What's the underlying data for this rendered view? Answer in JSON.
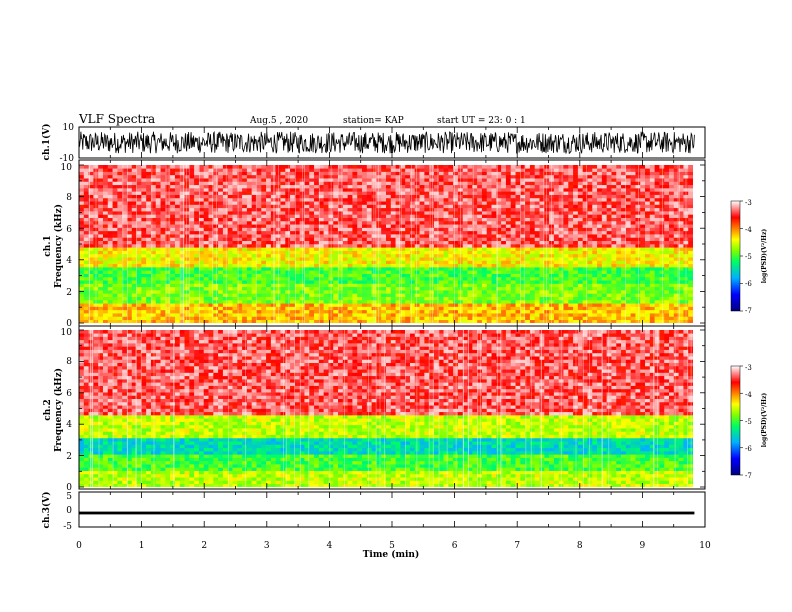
{
  "header": {
    "title": "VLF Spectra",
    "date": "Aug.5 , 2020",
    "station": "station= KAP",
    "start": "start UT = 23: 0 : 1"
  },
  "chart_data": [
    {
      "type": "line",
      "name": "ch1-waveform",
      "ylabel": "ch.1(V)",
      "ylim": [
        -10,
        10
      ],
      "y_ticks": [
        "10",
        "-10"
      ],
      "x": [
        0,
        9.83
      ],
      "amplitude_range": [
        -7,
        7
      ]
    },
    {
      "type": "heatmap",
      "name": "ch1-spectrogram",
      "ylabel": "ch.1\nFrequency (kHz)",
      "xlim": [
        0,
        10
      ],
      "ylim": [
        0,
        10
      ],
      "y_ticks": [
        "0",
        "2",
        "4",
        "6",
        "8",
        "10"
      ],
      "bands": [
        {
          "from_khz": 0,
          "to_khz": 1.2,
          "log_psd": -4.2
        },
        {
          "from_khz": 1.2,
          "to_khz": 2.5,
          "log_psd": -4.8
        },
        {
          "from_khz": 2.5,
          "to_khz": 3.5,
          "log_psd": -5.0
        },
        {
          "from_khz": 3.5,
          "to_khz": 4.8,
          "log_psd": -4.4
        },
        {
          "from_khz": 4.8,
          "to_khz": 10,
          "log_psd": -3.4
        }
      ],
      "colorbar": {
        "min": -7,
        "max": -3,
        "ticks": [
          "-3",
          "-4",
          "-5",
          "-6",
          "-7"
        ],
        "label": "log(PSD)(V²/Hz)"
      }
    },
    {
      "type": "heatmap",
      "name": "ch2-spectrogram",
      "ylabel": "ch.2\nFrequency (kHz)",
      "xlim": [
        0,
        10
      ],
      "ylim": [
        0,
        10
      ],
      "y_ticks": [
        "0",
        "2",
        "4",
        "6",
        "8",
        "10"
      ],
      "bands": [
        {
          "from_khz": 0,
          "to_khz": 1.0,
          "log_psd": -4.6
        },
        {
          "from_khz": 1.0,
          "to_khz": 2.0,
          "log_psd": -5.0
        },
        {
          "from_khz": 2.0,
          "to_khz": 3.2,
          "log_psd": -5.5
        },
        {
          "from_khz": 3.2,
          "to_khz": 4.6,
          "log_psd": -4.6
        },
        {
          "from_khz": 4.6,
          "to_khz": 10,
          "log_psd": -3.4
        }
      ],
      "colorbar": {
        "min": -7,
        "max": -3,
        "ticks": [
          "-3",
          "-4",
          "-5",
          "-6",
          "-7"
        ],
        "label": "log(PSD)(V²/Hz)"
      }
    },
    {
      "type": "line",
      "name": "ch3-waveform",
      "ylabel": "ch.3(V)",
      "xlabel": "Time (min)",
      "ylim": [
        -5,
        5
      ],
      "y_ticks": [
        "5",
        "0",
        "-5"
      ],
      "x_ticks": [
        "0",
        "1",
        "2",
        "3",
        "4",
        "5",
        "6",
        "7",
        "8",
        "9",
        "10"
      ],
      "xlim": [
        0,
        10
      ],
      "level_v": -1,
      "level_band": [
        -1.4,
        -0.6
      ]
    }
  ]
}
